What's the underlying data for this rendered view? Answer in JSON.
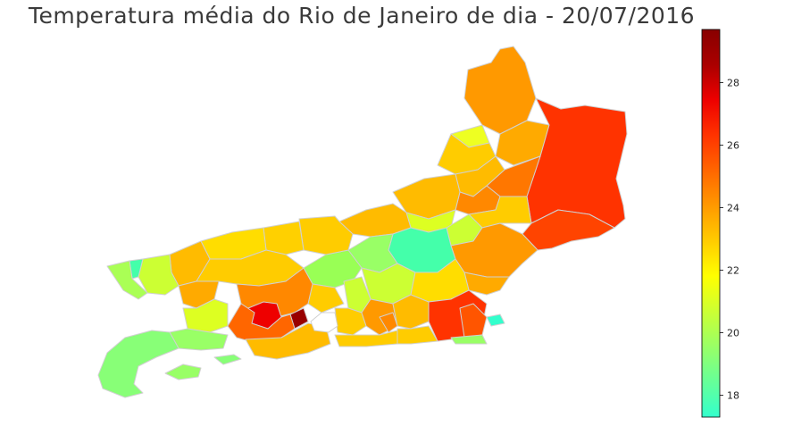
{
  "title": "Temperatura média do Rio de Janeiro de dia - 20/07/2016",
  "colorbar": {
    "min": 17.3,
    "max": 29.7,
    "ticks": [
      "18",
      "20",
      "22",
      "24",
      "26",
      "28"
    ],
    "tick_values": [
      18,
      20,
      22,
      24,
      26,
      28
    ],
    "gradient": [
      "#33ffcc",
      "#66ff99",
      "#99ff66",
      "#ccff33",
      "#ffff00",
      "#ffcc00",
      "#ff9900",
      "#ff6600",
      "#ff3300",
      "#ee0000",
      "#aa0000",
      "#880000"
    ]
  },
  "chart_data": {
    "type": "heatmap",
    "title": "Temperatura média do Rio de Janeiro de dia - 20/07/2016",
    "colorbar_range": [
      17.3,
      29.7
    ],
    "colorbar_ticks": [
      18,
      20,
      22,
      24,
      26,
      28
    ]
  }
}
